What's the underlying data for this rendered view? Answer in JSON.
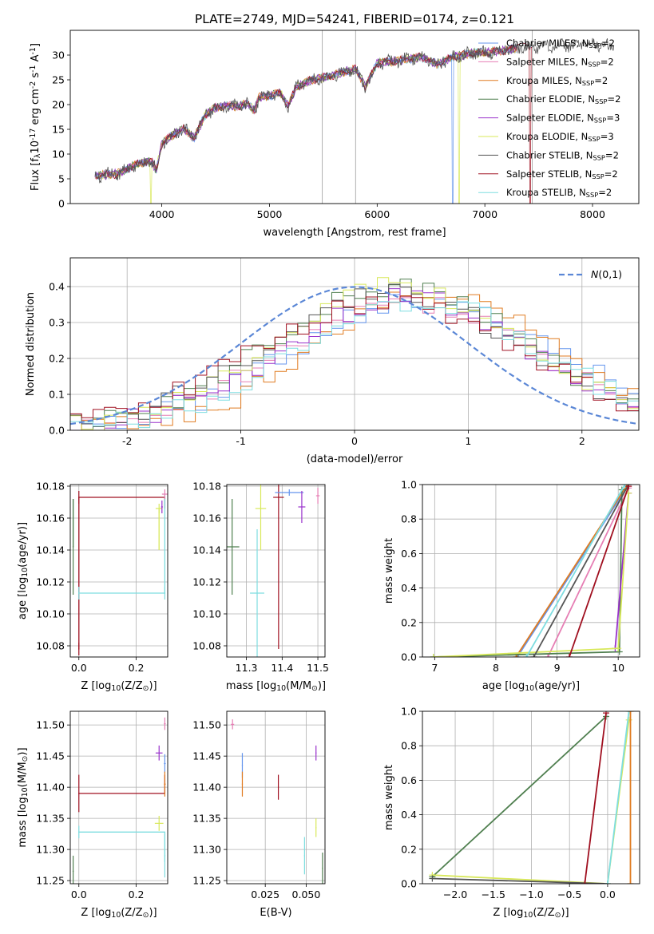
{
  "figure": {
    "title": "PLATE=2749, MJD=54241, FIBERID=0174, z=0.121"
  },
  "models": [
    {
      "label": "Chabrier MILES, N$_{SSP}$=2",
      "color": "#6495ED",
      "short": "chabrier-miles"
    },
    {
      "label": "Salpeter MILES, N$_{SSP}$=2",
      "color": "#E67EB4",
      "short": "salpeter-miles"
    },
    {
      "label": "Kroupa MILES, N$_{SSP}$=2",
      "color": "#E07B20",
      "short": "kroupa-miles"
    },
    {
      "label": "Chabrier ELODIE, N$_{SSP}$=2",
      "color": "#4F7F4F",
      "short": "chabrier-elodie"
    },
    {
      "label": "Salpeter ELODIE, N$_{SSP}$=3",
      "color": "#9932CC",
      "short": "salpeter-elodie"
    },
    {
      "label": "Kroupa ELODIE, N$_{SSP}$=3",
      "color": "#D8E85A",
      "short": "kroupa-elodie"
    },
    {
      "label": "Chabrier STELIB, N$_{SSP}$=2",
      "color": "#555555",
      "short": "chabrier-stelib"
    },
    {
      "label": "Salpeter STELIB, N$_{SSP}$=2",
      "color": "#A01020",
      "short": "salpeter-stelib"
    },
    {
      "label": "Kroupa STELIB, N$_{SSP}$=2",
      "color": "#7EDDE0",
      "short": "kroupa-stelib"
    }
  ],
  "chart_data": [
    {
      "id": "spectrum",
      "type": "line",
      "xlabel": "wavelength [Angstrom, rest frame]",
      "ylabel": "Flux [f$_\\lambda$10$^{-17}$ erg cm$^{-2}$ s$^{-1}$ A$^{-1}$]",
      "xlim": [
        3150,
        8430
      ],
      "ylim": [
        0,
        35
      ],
      "xticks": [
        4000,
        5000,
        6000,
        7000,
        8000
      ],
      "yticks": [
        0,
        5,
        10,
        15,
        20,
        25,
        30
      ],
      "legend": "upper right",
      "vlines": [
        5490,
        5800,
        7440
      ],
      "continuum": [
        [
          3380,
          5.6
        ],
        [
          3500,
          5.9
        ],
        [
          3600,
          6.1
        ],
        [
          3700,
          7.2
        ],
        [
          3800,
          8.2
        ],
        [
          3900,
          8.6
        ],
        [
          3950,
          6.8
        ],
        [
          4000,
          12.2
        ],
        [
          4100,
          13.8
        ],
        [
          4200,
          15.2
        ],
        [
          4300,
          13.2
        ],
        [
          4400,
          17.8
        ],
        [
          4500,
          19.4
        ],
        [
          4600,
          19.8
        ],
        [
          4700,
          19.6
        ],
        [
          4800,
          20.2
        ],
        [
          4860,
          18.8
        ],
        [
          4900,
          21.4
        ],
        [
          5000,
          21.8
        ],
        [
          5100,
          22.4
        ],
        [
          5175,
          19.8
        ],
        [
          5250,
          23.6
        ],
        [
          5400,
          25.0
        ],
        [
          5600,
          26.0
        ],
        [
          5800,
          27.2
        ],
        [
          5890,
          23.6
        ],
        [
          6000,
          28.4
        ],
        [
          6200,
          28.9
        ],
        [
          6400,
          29.6
        ],
        [
          6563,
          28.2
        ],
        [
          6700,
          29.6
        ],
        [
          6900,
          30.4
        ],
        [
          7100,
          30.7
        ],
        [
          7300,
          31.4
        ],
        [
          7500,
          31.8
        ],
        [
          7700,
          31.9
        ],
        [
          7900,
          32.2
        ],
        [
          8100,
          32.0
        ],
        [
          8200,
          31.6
        ]
      ],
      "dropouts": [
        {
          "model": 0,
          "x": 6700,
          "to": 0
        },
        {
          "model": 5,
          "x": 6760,
          "to": 0
        },
        {
          "model": 5,
          "x": 3900,
          "to": 0
        },
        {
          "model": 7,
          "x": 7420,
          "to": 0
        }
      ]
    },
    {
      "id": "residuals",
      "type": "line",
      "xlabel": "(data-model)/error",
      "ylabel": "Normed distribution",
      "xlim": [
        -2.5,
        2.5
      ],
      "ylim": [
        0,
        0.48
      ],
      "xticks": [
        -2,
        -1,
        0,
        1,
        2
      ],
      "yticks": [
        0.0,
        0.1,
        0.2,
        0.3,
        0.4
      ],
      "legend": "upper right",
      "normal_label": "$\\mathcal{N}(0,1)$",
      "normal_color": "#5B87D6",
      "shifts": [
        0.62,
        0.48,
        0.72,
        0.38,
        0.46,
        0.4,
        0.36,
        0.3,
        0.56
      ],
      "widths": [
        1.15,
        1.12,
        1.05,
        1.12,
        1.1,
        1.08,
        1.14,
        1.2,
        1.1
      ],
      "peaks": [
        0.37,
        0.36,
        0.38,
        0.4,
        0.37,
        0.4,
        0.38,
        0.36,
        0.36
      ]
    },
    {
      "id": "z-age",
      "type": "scatter",
      "xlabel": "Z [log$_{10}$(Z/Z$_\\odot$)]",
      "ylabel": "age  [log$_{10}$(age/yr)]",
      "xlim": [
        -0.03,
        0.31
      ],
      "ylim": [
        10.073,
        10.181
      ],
      "xticks": [
        0.0,
        0.2
      ],
      "yticks": [
        10.08,
        10.1,
        10.12,
        10.14,
        10.16,
        10.18
      ],
      "points": [
        {
          "m": 3,
          "x": -0.02,
          "y": 10.142,
          "ex": 0.002,
          "ey": 0.03
        },
        {
          "m": 7,
          "x": 0.0,
          "y": 10.173,
          "ex": 0.002,
          "ey": 0.004
        },
        {
          "m": 7,
          "x": 0.0,
          "y": 10.078,
          "ex": 0.002,
          "ey": 0.004
        },
        {
          "m": 8,
          "x": 0.0,
          "y": 10.113,
          "ex": 0.002,
          "ey": 0.004
        },
        {
          "m": 8,
          "x": 0.3,
          "y": 10.113,
          "ex": 0.002,
          "ey": 0.004
        },
        {
          "m": 5,
          "x": 0.28,
          "y": 10.166,
          "ex": 0.012,
          "ey": 0.003
        },
        {
          "m": 1,
          "x": 0.3,
          "y": 10.175,
          "ex": 0.01,
          "ey": 0.003
        },
        {
          "m": 4,
          "x": 0.29,
          "y": 10.167,
          "ex": 0.003,
          "ey": 0.004
        }
      ],
      "links": [
        {
          "m": 7,
          "pts": [
            [
              0.0,
              10.078
            ],
            [
              0.0,
              10.173
            ],
            [
              0.3,
              10.173
            ],
            [
              0.3,
              10.166
            ]
          ]
        },
        {
          "m": 8,
          "pts": [
            [
              0.0,
              10.113
            ],
            [
              0.3,
              10.113
            ],
            [
              0.3,
              10.175
            ]
          ]
        },
        {
          "m": 3,
          "pts": [
            [
              -0.02,
              10.142
            ],
            [
              -0.02,
              10.172
            ]
          ]
        },
        {
          "m": 5,
          "pts": [
            [
              0.28,
              10.14
            ],
            [
              0.28,
              10.166
            ]
          ]
        }
      ]
    },
    {
      "id": "mass-age",
      "type": "scatter",
      "xlabel": "mass [log$_{10}$(M/M$_\\odot$)]",
      "ylabel": "",
      "xlim": [
        11.245,
        11.52
      ],
      "ylim": [
        10.073,
        10.181
      ],
      "xticks": [
        11.3,
        11.4,
        11.5
      ],
      "yticks": [
        10.08,
        10.1,
        10.12,
        10.14,
        10.16,
        10.18
      ],
      "points": [
        {
          "m": 3,
          "x": 11.26,
          "y": 10.142,
          "ex": 0.02,
          "ey": 0.03
        },
        {
          "m": 8,
          "x": 11.33,
          "y": 10.113,
          "ex": 0.02,
          "ey": 0.04
        },
        {
          "m": 5,
          "x": 11.34,
          "y": 10.166,
          "ex": 0.015,
          "ey": 0.026
        },
        {
          "m": 7,
          "x": 11.39,
          "y": 10.173,
          "ex": 0.015,
          "ey": 0.095
        },
        {
          "m": 0,
          "x": 11.42,
          "y": 10.176,
          "ex": 0.04,
          "ey": 0.002
        },
        {
          "m": 4,
          "x": 11.455,
          "y": 10.167,
          "ex": 0.01,
          "ey": 0.01
        },
        {
          "m": 1,
          "x": 11.5,
          "y": 10.174,
          "ex": 0.005,
          "ey": 0.005
        }
      ]
    },
    {
      "id": "age-weight",
      "type": "line",
      "xlabel": "age  [log$_{10}$(age/yr)]",
      "ylabel": "mass weight",
      "xlim": [
        6.8,
        10.35
      ],
      "ylim": [
        0,
        1.0
      ],
      "xticks": [
        7,
        8,
        9,
        10
      ],
      "yticks": [
        0.0,
        0.2,
        0.4,
        0.6,
        0.8,
        1.0
      ],
      "series": [
        {
          "m": 0,
          "pts": [
            [
              8.35,
              0.0
            ],
            [
              10.17,
              1.0
            ]
          ]
        },
        {
          "m": 1,
          "pts": [
            [
              8.85,
              0.0
            ],
            [
              10.17,
              0.98
            ]
          ]
        },
        {
          "m": 2,
          "pts": [
            [
              8.33,
              0.0
            ],
            [
              10.15,
              1.0
            ]
          ]
        },
        {
          "m": 3,
          "pts": [
            [
              6.98,
              0.0
            ],
            [
              10.02,
              0.03
            ],
            [
              10.06,
              0.97
            ]
          ]
        },
        {
          "m": 4,
          "pts": [
            [
              9.95,
              0.05
            ],
            [
              10.17,
              0.95
            ]
          ]
        },
        {
          "m": 5,
          "pts": [
            [
              6.98,
              0.0
            ],
            [
              10.0,
              0.05
            ],
            [
              10.17,
              0.95
            ]
          ]
        },
        {
          "m": 6,
          "pts": [
            [
              8.62,
              0.0
            ],
            [
              10.17,
              1.0
            ]
          ]
        },
        {
          "m": 7,
          "pts": [
            [
              9.2,
              0.0
            ],
            [
              10.17,
              0.99
            ]
          ]
        },
        {
          "m": 8,
          "pts": [
            [
              8.5,
              0.0
            ],
            [
              10.11,
              1.0
            ]
          ]
        }
      ]
    },
    {
      "id": "z-mass",
      "type": "scatter",
      "xlabel": "Z [log$_{10}$(Z/Z$_\\odot$)]",
      "ylabel": "mass [log$_{10}$(M/M$_\\odot$)]",
      "xlim": [
        -0.03,
        0.31
      ],
      "ylim": [
        11.245,
        11.522
      ],
      "xticks": [
        0.0,
        0.2
      ],
      "yticks": [
        11.25,
        11.3,
        11.35,
        11.4,
        11.45,
        11.5
      ],
      "points": [
        {
          "m": 3,
          "x": -0.02,
          "y": 11.265,
          "ex": 0.002,
          "ey": 0.025
        },
        {
          "m": 7,
          "x": 0.0,
          "y": 11.39,
          "ex": 0.002,
          "ey": 0.03
        },
        {
          "m": 8,
          "x": 0.0,
          "y": 11.328,
          "ex": 0.002,
          "ey": 0.01
        },
        {
          "m": 8,
          "x": 0.3,
          "y": 11.29,
          "ex": 0.002,
          "ey": 0.035
        },
        {
          "m": 5,
          "x": 0.28,
          "y": 11.342,
          "ex": 0.015,
          "ey": 0.012
        },
        {
          "m": 4,
          "x": 0.28,
          "y": 11.455,
          "ex": 0.012,
          "ey": 0.012
        },
        {
          "m": 0,
          "x": 0.3,
          "y": 11.438,
          "ex": 0.003,
          "ey": 0.015
        },
        {
          "m": 2,
          "x": 0.3,
          "y": 11.405,
          "ex": 0.003,
          "ey": 0.02
        },
        {
          "m": 1,
          "x": 0.3,
          "y": 11.502,
          "ex": 0.003,
          "ey": 0.01
        }
      ],
      "links": [
        {
          "m": 7,
          "pts": [
            [
              0.0,
              11.39
            ],
            [
              0.3,
              11.39
            ],
            [
              0.3,
              11.42
            ]
          ]
        },
        {
          "m": 8,
          "pts": [
            [
              0.0,
              11.328
            ],
            [
              0.3,
              11.328
            ],
            [
              0.3,
              11.28
            ]
          ]
        }
      ]
    },
    {
      "id": "ebv-mass",
      "type": "scatter",
      "xlabel": "E(B-V)",
      "ylabel": "",
      "xlim": [
        0.0015,
        0.0615
      ],
      "ylim": [
        11.245,
        11.522
      ],
      "xticks": [
        0.025,
        0.05
      ],
      "yticks": [
        11.25,
        11.3,
        11.35,
        11.4,
        11.45,
        11.5
      ],
      "xticklabels": [
        "0.025",
        "0.050"
      ],
      "points": [
        {
          "m": 1,
          "x": 0.005,
          "y": 11.501,
          "ex": 0.001,
          "ey": 0.008
        },
        {
          "m": 0,
          "x": 0.011,
          "y": 11.435,
          "ex": 0.0003,
          "ey": 0.02
        },
        {
          "m": 2,
          "x": 0.011,
          "y": 11.405,
          "ex": 0.0003,
          "ey": 0.02
        },
        {
          "m": 7,
          "x": 0.033,
          "y": 11.4,
          "ex": 0.0003,
          "ey": 0.02
        },
        {
          "m": 8,
          "x": 0.049,
          "y": 11.29,
          "ex": 0.0003,
          "ey": 0.03
        },
        {
          "m": 4,
          "x": 0.056,
          "y": 11.455,
          "ex": 0.0003,
          "ey": 0.012
        },
        {
          "m": 5,
          "x": 0.056,
          "y": 11.335,
          "ex": 0.0003,
          "ey": 0.015
        },
        {
          "m": 3,
          "x": 0.06,
          "y": 11.27,
          "ex": 0.0003,
          "ey": 0.025
        }
      ]
    },
    {
      "id": "z-weight",
      "type": "line",
      "xlabel": "Z [log$_{10}$(Z/Z$_\\odot$)]",
      "ylabel": "mass weight",
      "xlim": [
        -2.43,
        0.42
      ],
      "ylim": [
        0,
        1.0
      ],
      "xticks": [
        -2.0,
        -1.5,
        -1.0,
        -0.5,
        0.0
      ],
      "yticks": [
        0.0,
        0.2,
        0.4,
        0.6,
        0.8,
        1.0
      ],
      "series": [
        {
          "m": 3,
          "pts": [
            [
              -2.3,
              0.04
            ],
            [
              -0.02,
              0.97
            ]
          ]
        },
        {
          "m": 5,
          "pts": [
            [
              -2.3,
              0.05
            ],
            [
              0.0,
              0.0
            ],
            [
              0.28,
              0.95
            ]
          ]
        },
        {
          "m": 6,
          "pts": [
            [
              -2.3,
              0.03
            ],
            [
              0.0,
              0.0
            ]
          ]
        },
        {
          "m": 7,
          "pts": [
            [
              -0.3,
              0.0
            ],
            [
              -0.02,
              0.99
            ]
          ]
        },
        {
          "m": 8,
          "pts": [
            [
              0.0,
              0.0
            ],
            [
              0.28,
              1.0
            ]
          ]
        },
        {
          "m": 2,
          "pts": [
            [
              0.3,
              0.0
            ],
            [
              0.3,
              1.0
            ]
          ]
        }
      ]
    }
  ]
}
